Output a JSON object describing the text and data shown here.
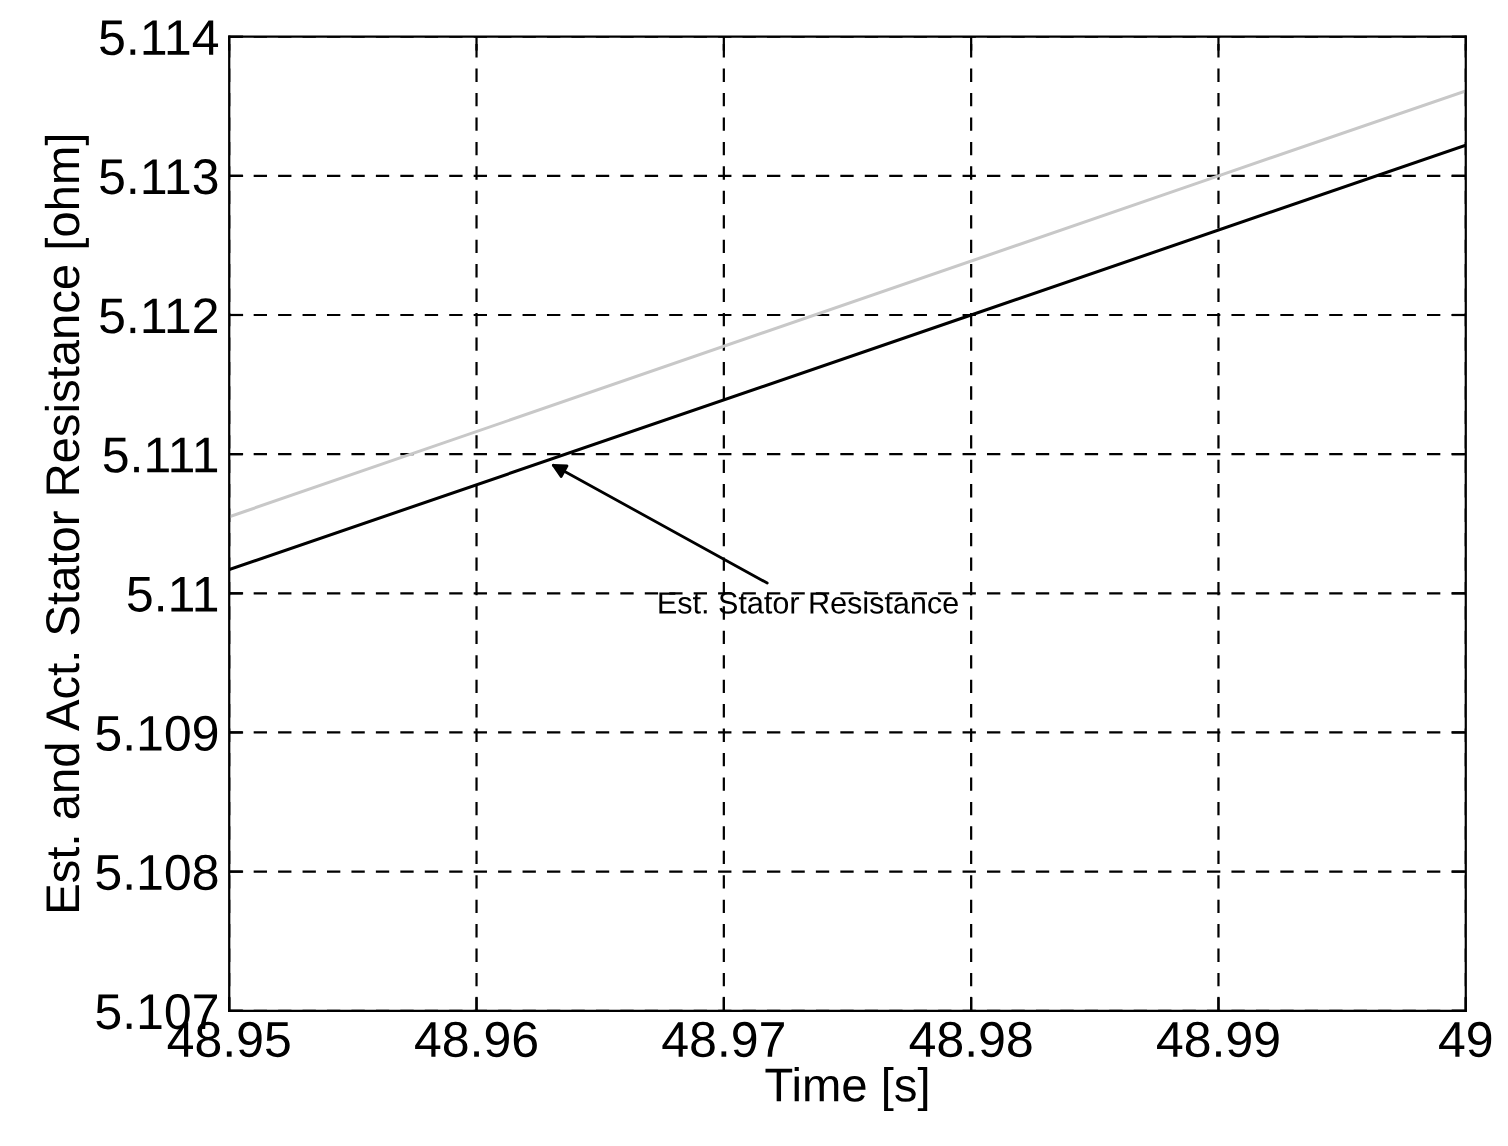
{
  "chart_data": {
    "type": "line",
    "xlabel": "Time [s]",
    "ylabel": "Est. and Act. Stator Resistance [ohm]",
    "xlim": [
      48.95,
      49
    ],
    "xticks": [
      48.95,
      48.96,
      48.97,
      48.98,
      48.99,
      49
    ],
    "ylim": [
      5.107,
      5.114
    ],
    "yticks": [
      5.107,
      5.108,
      5.109,
      5.11,
      5.111,
      5.112,
      5.113,
      5.114
    ],
    "grid": true,
    "line_style": "solid",
    "marker": "none",
    "series": [
      {
        "color": "#c8c8c8",
        "x": [
          48.95,
          48.99,
          49
        ],
        "values": [
          5.11055,
          5.113,
          5.11361
        ]
      },
      {
        "color": "#000000",
        "x": [
          48.95,
          48.98,
          49
        ],
        "values": [
          5.11017,
          5.112,
          5.11322
        ]
      }
    ],
    "annotations": [
      {
        "text": "Est. Stator Resistance",
        "x": 48.9628,
        "y": 5.11095
      }
    ]
  }
}
